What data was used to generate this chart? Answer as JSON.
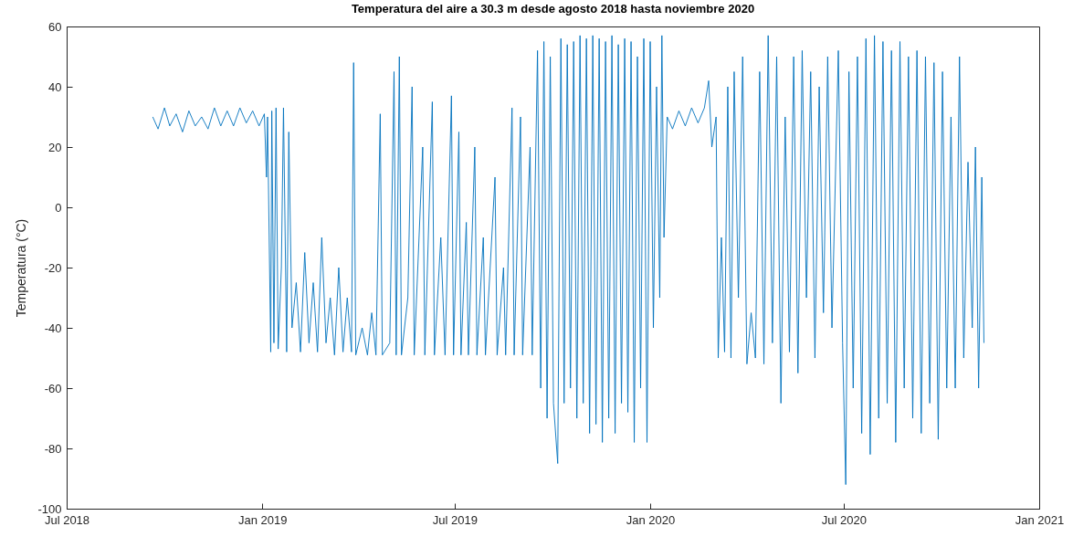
{
  "chart_data": {
    "type": "line",
    "title": "Temperatura del aire a 30.3 m desde agosto 2018 hasta noviembre 2020",
    "ylabel": "Temperatura  (°C)",
    "xlim": [
      "2018-07-01",
      "2021-01-01"
    ],
    "xticks": [
      {
        "value": "2018-07-01",
        "label": "Jul 2018"
      },
      {
        "value": "2019-01-01",
        "label": "Jan 2019"
      },
      {
        "value": "2019-07-01",
        "label": "Jul 2019"
      },
      {
        "value": "2020-01-01",
        "label": "Jan 2020"
      },
      {
        "value": "2020-07-01",
        "label": "Jul 2020"
      },
      {
        "value": "2021-01-01",
        "label": "Jan 2021"
      }
    ],
    "ylim": [
      -100,
      60
    ],
    "yticks": [
      -100,
      -80,
      -60,
      -40,
      -20,
      0,
      20,
      40,
      60
    ],
    "grid": false,
    "series": [
      {
        "color": "#0072bd",
        "x": [
          "2018-09-20",
          "2018-09-25",
          "2018-10-01",
          "2018-10-06",
          "2018-10-12",
          "2018-10-18",
          "2018-10-24",
          "2018-10-30",
          "2018-11-05",
          "2018-11-11",
          "2018-11-17",
          "2018-11-23",
          "2018-11-29",
          "2018-12-05",
          "2018-12-11",
          "2018-12-17",
          "2018-12-23",
          "2018-12-29",
          "2019-01-03",
          "2019-01-05",
          "2019-01-06",
          "2019-01-09",
          "2019-01-10",
          "2019-01-12",
          "2019-01-14",
          "2019-01-16",
          "2019-01-19",
          "2019-01-21",
          "2019-01-24",
          "2019-01-26",
          "2019-01-29",
          "2019-02-02",
          "2019-02-06",
          "2019-02-10",
          "2019-02-14",
          "2019-02-18",
          "2019-02-22",
          "2019-02-26",
          "2019-03-02",
          "2019-03-06",
          "2019-03-10",
          "2019-03-14",
          "2019-03-18",
          "2019-03-22",
          "2019-03-26",
          "2019-03-28",
          "2019-03-30",
          "2019-04-05",
          "2019-04-10",
          "2019-04-14",
          "2019-04-18",
          "2019-04-22",
          "2019-04-24",
          "2019-05-01",
          "2019-05-05",
          "2019-05-07",
          "2019-05-10",
          "2019-05-12",
          "2019-05-18",
          "2019-05-22",
          "2019-05-24",
          "2019-06-01",
          "2019-06-03",
          "2019-06-10",
          "2019-06-12",
          "2019-06-18",
          "2019-06-22",
          "2019-06-28",
          "2019-06-30",
          "2019-07-05",
          "2019-07-07",
          "2019-07-12",
          "2019-07-14",
          "2019-07-20",
          "2019-07-22",
          "2019-07-28",
          "2019-07-30",
          "2019-08-08",
          "2019-08-10",
          "2019-08-16",
          "2019-08-18",
          "2019-08-24",
          "2019-08-26",
          "2019-09-01",
          "2019-09-03",
          "2019-09-10",
          "2019-09-12",
          "2019-09-17",
          "2019-09-20",
          "2019-09-23",
          "2019-09-26",
          "2019-09-29",
          "2019-10-02",
          "2019-10-06",
          "2019-10-09",
          "2019-10-12",
          "2019-10-15",
          "2019-10-18",
          "2019-10-21",
          "2019-10-24",
          "2019-10-27",
          "2019-10-30",
          "2019-11-02",
          "2019-11-05",
          "2019-11-08",
          "2019-11-11",
          "2019-11-14",
          "2019-11-17",
          "2019-11-20",
          "2019-11-23",
          "2019-11-26",
          "2019-11-29",
          "2019-12-02",
          "2019-12-05",
          "2019-12-08",
          "2019-12-11",
          "2019-12-14",
          "2019-12-17",
          "2019-12-20",
          "2019-12-23",
          "2019-12-26",
          "2019-12-29",
          "2020-01-01",
          "2020-01-04",
          "2020-01-07",
          "2020-01-10",
          "2020-01-12",
          "2020-01-14",
          "2020-01-17",
          "2020-01-22",
          "2020-01-28",
          "2020-02-03",
          "2020-02-09",
          "2020-02-15",
          "2020-02-21",
          "2020-02-25",
          "2020-02-28",
          "2020-03-03",
          "2020-03-05",
          "2020-03-08",
          "2020-03-11",
          "2020-03-14",
          "2020-03-17",
          "2020-03-20",
          "2020-03-24",
          "2020-03-28",
          "2020-04-01",
          "2020-04-05",
          "2020-04-09",
          "2020-04-13",
          "2020-04-17",
          "2020-04-21",
          "2020-04-25",
          "2020-04-29",
          "2020-05-03",
          "2020-05-07",
          "2020-05-11",
          "2020-05-15",
          "2020-05-19",
          "2020-05-23",
          "2020-05-27",
          "2020-05-31",
          "2020-06-04",
          "2020-06-08",
          "2020-06-12",
          "2020-06-16",
          "2020-06-20",
          "2020-06-26",
          "2020-06-30",
          "2020-07-03",
          "2020-07-06",
          "2020-07-10",
          "2020-07-14",
          "2020-07-18",
          "2020-07-22",
          "2020-07-26",
          "2020-07-30",
          "2020-08-03",
          "2020-08-07",
          "2020-08-11",
          "2020-08-15",
          "2020-08-19",
          "2020-08-23",
          "2020-08-27",
          "2020-08-31",
          "2020-09-04",
          "2020-09-08",
          "2020-09-12",
          "2020-09-16",
          "2020-09-20",
          "2020-09-24",
          "2020-09-28",
          "2020-10-02",
          "2020-10-06",
          "2020-10-10",
          "2020-10-14",
          "2020-10-18",
          "2020-10-22",
          "2020-10-26",
          "2020-10-30",
          "2020-11-02",
          "2020-11-05",
          "2020-11-08",
          "2020-11-10"
        ],
        "values": [
          30,
          26,
          33,
          27,
          31,
          25,
          32,
          27,
          30,
          26,
          33,
          27,
          32,
          27,
          33,
          28,
          32,
          27,
          31,
          10,
          30,
          -48,
          32,
          -45,
          33,
          -47,
          -20,
          33,
          -48,
          25,
          -40,
          -25,
          -48,
          -15,
          -45,
          -25,
          -48,
          -10,
          -45,
          -30,
          -49,
          -20,
          -48,
          -30,
          -48,
          48,
          -49,
          -40,
          -49,
          -35,
          -49,
          31,
          -49,
          -45,
          45,
          -49,
          50,
          -49,
          -30,
          40,
          -49,
          20,
          -49,
          35,
          -49,
          -10,
          -49,
          37,
          -49,
          25,
          -49,
          -5,
          -49,
          20,
          -49,
          -10,
          -49,
          10,
          -49,
          -20,
          -49,
          33,
          -49,
          30,
          -49,
          20,
          -49,
          52,
          -60,
          55,
          -70,
          50,
          -65,
          -85,
          56,
          -65,
          54,
          -60,
          55,
          -70,
          57,
          -65,
          56,
          -75,
          57,
          -72,
          56,
          -78,
          55,
          -70,
          57,
          -75,
          54,
          -65,
          56,
          -68,
          55,
          -78,
          50,
          -60,
          56,
          -78,
          55,
          -40,
          40,
          -30,
          57,
          -10,
          30,
          26,
          32,
          27,
          33,
          28,
          33,
          42,
          20,
          30,
          -50,
          -10,
          -48,
          40,
          -50,
          45,
          -30,
          50,
          -52,
          -35,
          -50,
          45,
          -52,
          57,
          -45,
          50,
          -65,
          30,
          -48,
          50,
          -55,
          52,
          -30,
          45,
          -50,
          40,
          -35,
          50,
          -40,
          52,
          -45,
          -92,
          45,
          -60,
          50,
          -75,
          56,
          -82,
          57,
          -70,
          55,
          -65,
          52,
          -78,
          55,
          -60,
          50,
          -70,
          52,
          -75,
          50,
          -65,
          48,
          -77,
          45,
          -60,
          30,
          -60,
          50,
          -50,
          15,
          -40,
          20,
          -60,
          10,
          -45
        ]
      }
    ]
  }
}
